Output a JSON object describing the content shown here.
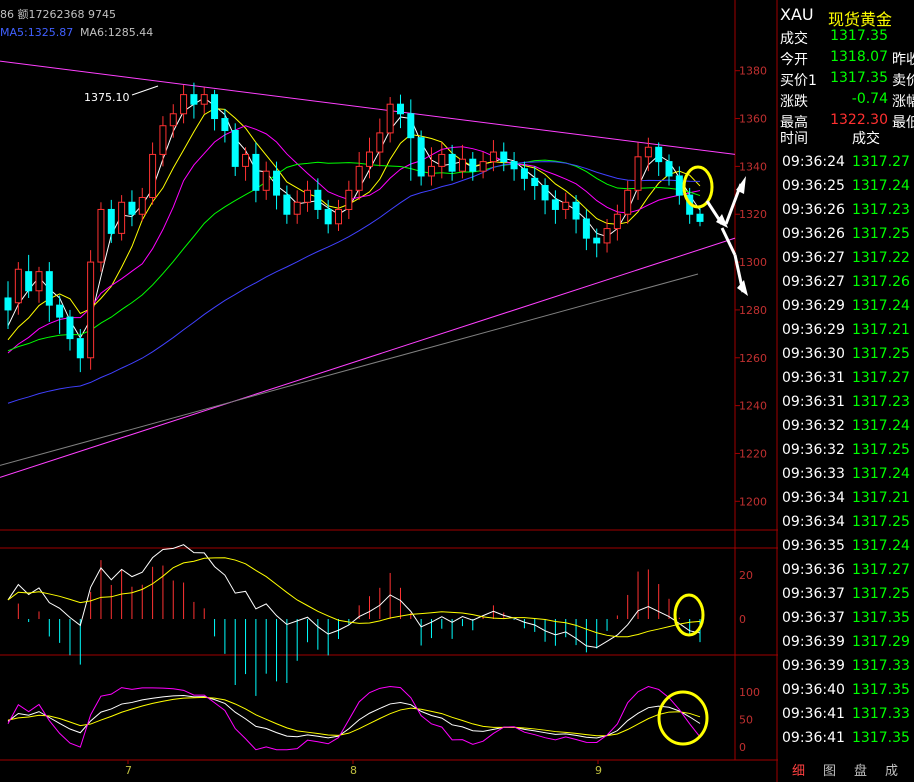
{
  "header": {
    "volume_text": "86 额17262368 9745",
    "ma5_label": "MA5:1325.87",
    "ma6_label": "MA6:1285.44"
  },
  "quote": {
    "symbol": "XAU",
    "name": "现货黄金",
    "rows": [
      {
        "label": "成交",
        "value": "1317.35",
        "extra": "",
        "color": "#00ff00"
      },
      {
        "label": "今开",
        "value": "1318.07",
        "extra": "昨收",
        "color": "#00ff00"
      },
      {
        "label": "买价1",
        "value": "1317.35",
        "extra": "卖价",
        "color": "#00ff00"
      },
      {
        "label": "涨跌",
        "value": "-0.74",
        "extra": "涨幅",
        "color": "#00ff00"
      },
      {
        "label": "最高",
        "value": "1322.30",
        "extra": "最低",
        "color": "#ff3030"
      }
    ],
    "ticks_header": {
      "time": "时间",
      "price": "成交"
    },
    "ticks": [
      {
        "time": "09:36:24",
        "price": "1317.27"
      },
      {
        "time": "09:36:25",
        "price": "1317.24"
      },
      {
        "time": "09:36:26",
        "price": "1317.23"
      },
      {
        "time": "09:36:26",
        "price": "1317.25"
      },
      {
        "time": "09:36:27",
        "price": "1317.22"
      },
      {
        "time": "09:36:27",
        "price": "1317.26"
      },
      {
        "time": "09:36:29",
        "price": "1317.24"
      },
      {
        "time": "09:36:29",
        "price": "1317.21"
      },
      {
        "time": "09:36:30",
        "price": "1317.25"
      },
      {
        "time": "09:36:31",
        "price": "1317.27"
      },
      {
        "time": "09:36:31",
        "price": "1317.23"
      },
      {
        "time": "09:36:32",
        "price": "1317.24"
      },
      {
        "time": "09:36:32",
        "price": "1317.25"
      },
      {
        "time": "09:36:33",
        "price": "1317.24"
      },
      {
        "time": "09:36:34",
        "price": "1317.21"
      },
      {
        "time": "09:36:34",
        "price": "1317.25"
      },
      {
        "time": "09:36:35",
        "price": "1317.24"
      },
      {
        "time": "09:36:36",
        "price": "1317.27"
      },
      {
        "time": "09:36:37",
        "price": "1317.25"
      },
      {
        "time": "09:36:37",
        "price": "1317.35"
      },
      {
        "time": "09:36:39",
        "price": "1317.29"
      },
      {
        "time": "09:36:39",
        "price": "1317.33"
      },
      {
        "time": "09:36:40",
        "price": "1317.35"
      },
      {
        "time": "09:36:41",
        "price": "1317.33"
      },
      {
        "time": "09:36:41",
        "price": "1317.35"
      }
    ],
    "tick_color": "#00ff00"
  },
  "tabs": [
    "细",
    "图",
    "盘",
    "成"
  ],
  "chart_data": {
    "type": "candlestick",
    "price_axis": {
      "ticks": [
        1380,
        1360,
        1340,
        1320,
        1300,
        1280,
        1260,
        1240,
        1220,
        1200
      ],
      "range": [
        1188,
        1392
      ]
    },
    "macd_axis": {
      "ticks": [
        20,
        0
      ]
    },
    "kdj_axis": {
      "ticks": [
        100,
        50,
        0
      ]
    },
    "x_labels": [
      "7",
      "8",
      "9"
    ],
    "annotation": "1375.10",
    "candles": [
      [
        1285,
        1280,
        1292,
        1272
      ],
      [
        1283,
        1297,
        1300,
        1278
      ],
      [
        1296,
        1288,
        1303,
        1285
      ],
      [
        1288,
        1296,
        1298,
        1283
      ],
      [
        1296,
        1282,
        1300,
        1275
      ],
      [
        1282,
        1277,
        1286,
        1270
      ],
      [
        1277,
        1268,
        1280,
        1263
      ],
      [
        1268,
        1260,
        1272,
        1254
      ],
      [
        1260,
        1300,
        1305,
        1255
      ],
      [
        1300,
        1322,
        1325,
        1296
      ],
      [
        1322,
        1312,
        1326,
        1308
      ],
      [
        1312,
        1325,
        1328,
        1309
      ],
      [
        1325,
        1320,
        1330,
        1315
      ],
      [
        1320,
        1327,
        1331,
        1317
      ],
      [
        1327,
        1345,
        1350,
        1324
      ],
      [
        1345,
        1357,
        1361,
        1340
      ],
      [
        1357,
        1362,
        1366,
        1352
      ],
      [
        1362,
        1370,
        1374,
        1358
      ],
      [
        1370,
        1366,
        1375,
        1360
      ],
      [
        1366,
        1370,
        1373,
        1362
      ],
      [
        1370,
        1360,
        1372,
        1355
      ],
      [
        1360,
        1355,
        1364,
        1350
      ],
      [
        1355,
        1340,
        1358,
        1336
      ],
      [
        1340,
        1345,
        1348,
        1334
      ],
      [
        1345,
        1330,
        1350,
        1325
      ],
      [
        1330,
        1338,
        1342,
        1326
      ],
      [
        1338,
        1328,
        1342,
        1322
      ],
      [
        1328,
        1320,
        1332,
        1316
      ],
      [
        1320,
        1325,
        1330,
        1316
      ],
      [
        1325,
        1330,
        1334,
        1321
      ],
      [
        1330,
        1322,
        1335,
        1318
      ],
      [
        1322,
        1316,
        1326,
        1312
      ],
      [
        1316,
        1322,
        1326,
        1313
      ],
      [
        1322,
        1330,
        1334,
        1318
      ],
      [
        1330,
        1340,
        1346,
        1326
      ],
      [
        1340,
        1346,
        1352,
        1335
      ],
      [
        1346,
        1354,
        1360,
        1340
      ],
      [
        1354,
        1366,
        1369,
        1350
      ],
      [
        1366,
        1362,
        1370,
        1356
      ],
      [
        1362,
        1352,
        1368,
        1334
      ],
      [
        1352,
        1336,
        1355,
        1332
      ],
      [
        1336,
        1340,
        1348,
        1332
      ],
      [
        1340,
        1345,
        1350,
        1335
      ],
      [
        1345,
        1338,
        1349,
        1334
      ],
      [
        1338,
        1343,
        1349,
        1335
      ],
      [
        1343,
        1338,
        1346,
        1334
      ],
      [
        1338,
        1342,
        1346,
        1335
      ],
      [
        1342,
        1346,
        1351,
        1338
      ],
      [
        1346,
        1342,
        1350,
        1338
      ],
      [
        1342,
        1339,
        1346,
        1334
      ],
      [
        1339,
        1335,
        1342,
        1330
      ],
      [
        1335,
        1332,
        1340,
        1326
      ],
      [
        1332,
        1326,
        1335,
        1320
      ],
      [
        1326,
        1322,
        1330,
        1316
      ],
      [
        1322,
        1325,
        1329,
        1318
      ],
      [
        1325,
        1318,
        1328,
        1312
      ],
      [
        1318,
        1310,
        1322,
        1305
      ],
      [
        1310,
        1308,
        1314,
        1302
      ],
      [
        1308,
        1314,
        1318,
        1304
      ],
      [
        1314,
        1320,
        1324,
        1309
      ],
      [
        1320,
        1330,
        1334,
        1316
      ],
      [
        1330,
        1344,
        1350,
        1326
      ],
      [
        1344,
        1348,
        1352,
        1338
      ],
      [
        1348,
        1342,
        1350,
        1336
      ],
      [
        1342,
        1336,
        1345,
        1332
      ],
      [
        1336,
        1328,
        1340,
        1324
      ],
      [
        1328,
        1320,
        1331,
        1316
      ],
      [
        1320,
        1317,
        1323,
        1315
      ]
    ],
    "colors": {
      "up": "#ff3232",
      "down": "#00ffff",
      "ma_white": "#ffffff",
      "ma_yellow": "#ffff00",
      "ma_magenta": "#ff00ff",
      "ma_green": "#00ff00",
      "ma_blue": "#4040ff",
      "ma_gray": "#808080",
      "trendline": "#ff40ff",
      "axis": "#a00000"
    }
  }
}
